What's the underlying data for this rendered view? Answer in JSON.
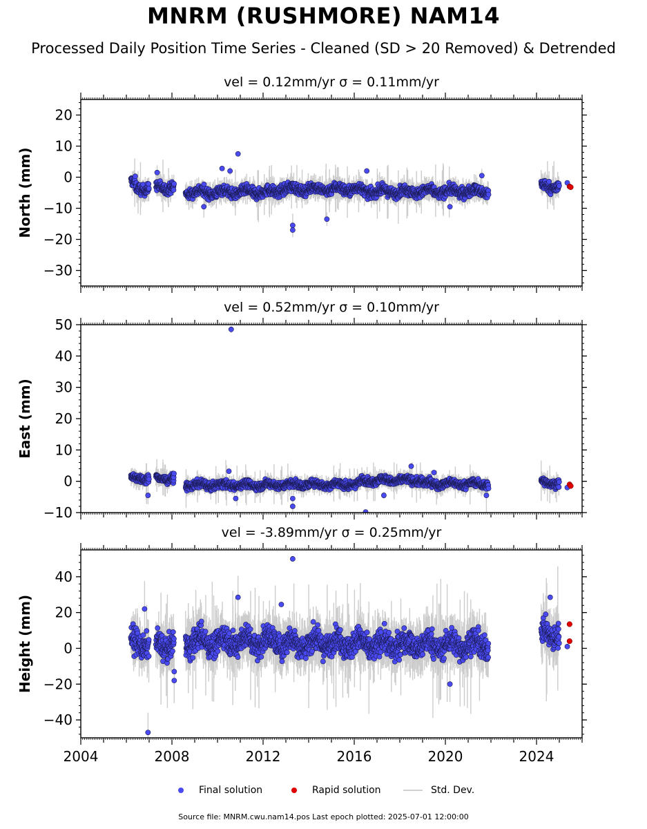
{
  "title": "MNRM (RUSHMORE) NAM14",
  "subtitle": "Processed Daily Position Time Series - Cleaned (SD > 20 Removed) & Detrended",
  "legend": {
    "final": "Final solution",
    "rapid": "Rapid solution",
    "std": "Std. Dev."
  },
  "footer": "Source file: MNRM.cwu.nam14.pos  Last epoch plotted: 2025-07-01 12:00:00",
  "colors": {
    "final": "#4a4af2",
    "rapid": "#e00000",
    "std": "#cccccc",
    "edge": "#1a1a50"
  },
  "chart_data": [
    {
      "type": "scatter",
      "panel": "north",
      "title": "vel = 0.12mm/yr   σ = 0.11mm/yr",
      "ylabel": "North (mm)",
      "xlim": [
        2004,
        2026
      ],
      "ylim": [
        -35,
        25
      ],
      "yticks": [
        20,
        10,
        0,
        -10,
        -20,
        -30
      ],
      "ytick_labels": [
        "20",
        "10",
        "0",
        "−10",
        "−20",
        "−30"
      ],
      "xticks": [
        2004,
        2008,
        2012,
        2016,
        2020,
        2024
      ],
      "baseline": [
        {
          "start": 2006.2,
          "end": 2006.4,
          "mean": -2
        },
        {
          "start": 2006.4,
          "end": 2007.0,
          "mean": -3.5
        },
        {
          "start": 2007.3,
          "end": 2008.1,
          "mean": -3.2
        },
        {
          "start": 2008.6,
          "end": 2012.7,
          "mean": -4.8
        },
        {
          "start": 2012.7,
          "end": 2016.3,
          "mean": -3.8
        },
        {
          "start": 2016.3,
          "end": 2021.9,
          "mean": -4.6
        },
        {
          "start": 2024.2,
          "end": 2025.0,
          "mean": -3.0
        }
      ],
      "noise": 1.6,
      "outliers": [
        [
          2007.35,
          1.5
        ],
        [
          2010.2,
          2.8
        ],
        [
          2010.55,
          2.0
        ],
        [
          2010.9,
          7.5
        ],
        [
          2013.3,
          -15.5
        ],
        [
          2013.3,
          -17
        ],
        [
          2014.8,
          -13.5
        ],
        [
          2016.55,
          2.0
        ],
        [
          2009.4,
          -9.5
        ],
        [
          2020.2,
          -9.5
        ],
        [
          2021.6,
          0.5
        ]
      ],
      "rapid": [
        [
          2025.45,
          -3.0
        ],
        [
          2025.5,
          -3.2
        ]
      ],
      "rapid_extra": [
        [
          2025.35,
          -1.8
        ]
      ]
    },
    {
      "type": "scatter",
      "panel": "east",
      "title": "vel = 0.52mm/yr   σ = 0.10mm/yr",
      "ylabel": "East (mm)",
      "xlim": [
        2004,
        2026
      ],
      "ylim": [
        -10,
        50
      ],
      "yticks": [
        50,
        40,
        30,
        20,
        10,
        0,
        -10
      ],
      "ytick_labels": [
        "50",
        "40",
        "30",
        "20",
        "10",
        "0",
        "−10"
      ],
      "xticks": [
        2004,
        2008,
        2012,
        2016,
        2020,
        2024
      ],
      "baseline": [
        {
          "start": 2006.2,
          "end": 2007.0,
          "mean": 1.0
        },
        {
          "start": 2007.3,
          "end": 2008.1,
          "mean": 1.0
        },
        {
          "start": 2008.6,
          "end": 2012.7,
          "mean": -1.2
        },
        {
          "start": 2012.7,
          "end": 2016.3,
          "mean": -1.0
        },
        {
          "start": 2016.3,
          "end": 2019.0,
          "mean": 0.3
        },
        {
          "start": 2019.0,
          "end": 2021.9,
          "mean": -0.8
        },
        {
          "start": 2024.2,
          "end": 2025.0,
          "mean": -0.5
        }
      ],
      "noise": 1.2,
      "outliers": [
        [
          2010.6,
          48.5
        ],
        [
          2010.5,
          3.2
        ],
        [
          2006.95,
          -4.5
        ],
        [
          2013.3,
          -5.5
        ],
        [
          2013.3,
          -8.0
        ],
        [
          2016.5,
          -9.8
        ],
        [
          2018.5,
          4.8
        ],
        [
          2010.8,
          -5.5
        ],
        [
          2017.3,
          -4.5
        ],
        [
          2019.5,
          2.8
        ],
        [
          2021.8,
          -4.5
        ]
      ],
      "rapid": [
        [
          2025.45,
          -1.0
        ],
        [
          2025.5,
          -1.5
        ]
      ],
      "rapid_extra": [
        [
          2025.35,
          -2.0
        ]
      ]
    },
    {
      "type": "scatter",
      "panel": "height",
      "title": "vel = -3.89mm/yr   σ = 0.25mm/yr",
      "ylabel": "Height (mm)",
      "xlim": [
        2004,
        2026
      ],
      "ylim": [
        -50,
        55
      ],
      "yticks": [
        40,
        20,
        0,
        -20,
        -40
      ],
      "ytick_labels": [
        "40",
        "20",
        "0",
        "−20",
        "−40"
      ],
      "xticks": [
        2004,
        2008,
        2012,
        2016,
        2020,
        2024
      ],
      "xtick_labels": [
        "2004",
        "2008",
        "2012",
        "2016",
        "2020",
        "2024"
      ],
      "baseline": [
        {
          "start": 2006.2,
          "end": 2007.0,
          "mean": 3
        },
        {
          "start": 2007.3,
          "end": 2008.1,
          "mean": 2
        },
        {
          "start": 2008.6,
          "end": 2012.7,
          "mean": 4
        },
        {
          "start": 2012.7,
          "end": 2016.3,
          "mean": 3
        },
        {
          "start": 2016.3,
          "end": 2021.9,
          "mean": 2
        },
        {
          "start": 2024.2,
          "end": 2025.0,
          "mean": 8
        }
      ],
      "noise": 6.5,
      "outliers": [
        [
          2006.95,
          -47
        ],
        [
          2013.3,
          50
        ],
        [
          2010.9,
          28.5
        ],
        [
          2012.8,
          24.5
        ],
        [
          2020.2,
          -20
        ],
        [
          2024.6,
          28.5
        ],
        [
          2008.1,
          -18
        ],
        [
          2008.1,
          -13
        ],
        [
          2006.8,
          22
        ]
      ],
      "rapid": [
        [
          2025.45,
          13.5
        ],
        [
          2025.45,
          4.0
        ]
      ],
      "rapid_extra": [
        [
          2025.35,
          1.0
        ]
      ]
    }
  ]
}
